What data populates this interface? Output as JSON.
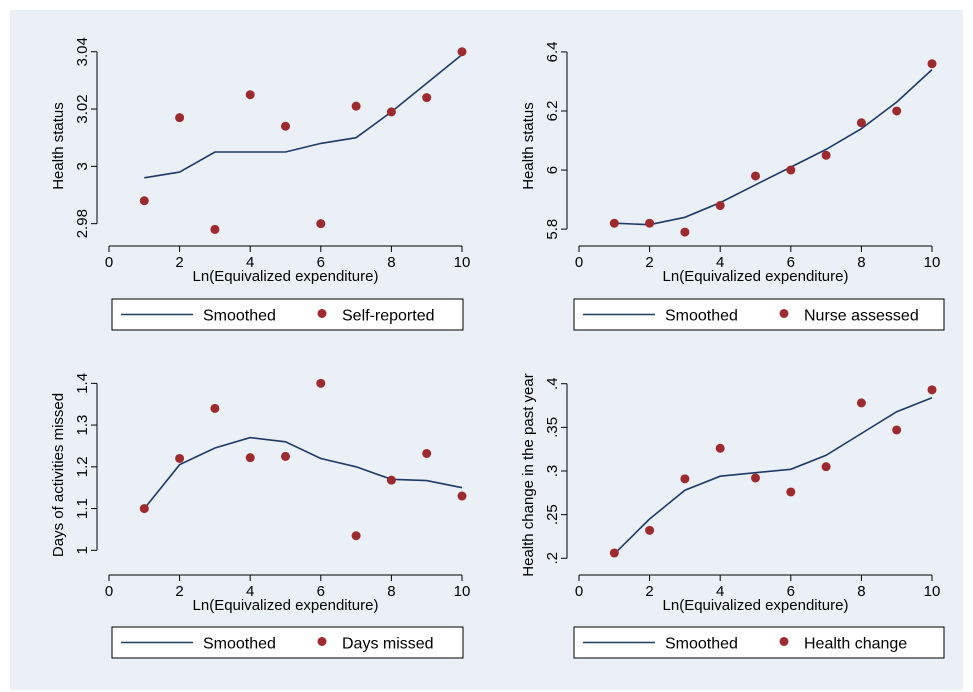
{
  "colors": {
    "background": "#eaf0f5",
    "line": "#1f3a66",
    "marker": "#9c2a2e",
    "frame": "#000000"
  },
  "chart_data": [
    {
      "type": "line+scatter",
      "xlabel": "Ln(Equivalized expenditure)",
      "ylabel": "Health status",
      "xlim": [
        0,
        10
      ],
      "ylim": [
        2.975,
        3.042
      ],
      "xticks": [
        0,
        2,
        4,
        6,
        8,
        10
      ],
      "yticks": [
        2.98,
        3,
        3.02,
        3.04
      ],
      "ytick_labels": [
        "2.98",
        "3",
        "3.02",
        "3.04"
      ],
      "x": [
        1,
        2,
        3,
        4,
        5,
        6,
        7,
        8,
        9,
        10
      ],
      "series": [
        {
          "name": "Smoothed",
          "kind": "line",
          "values": [
            2.996,
            2.998,
            3.005,
            3.005,
            3.005,
            3.008,
            3.01,
            3.019,
            3.029,
            3.039
          ]
        },
        {
          "name": "Self-reported",
          "kind": "scatter",
          "values": [
            2.988,
            3.017,
            2.978,
            3.025,
            3.014,
            2.98,
            3.021,
            3.019,
            3.024,
            3.04
          ]
        }
      ],
      "legend": [
        "Smoothed",
        "Self-reported"
      ],
      "legend_position": "bottom"
    },
    {
      "type": "line+scatter",
      "xlabel": "Ln(Equivalized expenditure)",
      "ylabel": "Health status",
      "xlim": [
        0,
        10
      ],
      "ylim": [
        5.77,
        6.42
      ],
      "xticks": [
        0,
        2,
        4,
        6,
        8,
        10
      ],
      "yticks": [
        5.8,
        6,
        6.2,
        6.4
      ],
      "ytick_labels": [
        "5.8",
        "6",
        "6.2",
        "6.4"
      ],
      "x": [
        1,
        2,
        3,
        4,
        5,
        6,
        7,
        8,
        9,
        10
      ],
      "series": [
        {
          "name": "Smoothed",
          "kind": "line",
          "values": [
            5.82,
            5.815,
            5.84,
            5.89,
            5.95,
            6.01,
            6.07,
            6.14,
            6.23,
            6.34
          ]
        },
        {
          "name": "Nurse assessed",
          "kind": "scatter",
          "values": [
            5.82,
            5.82,
            5.79,
            5.88,
            5.98,
            6.0,
            6.05,
            6.16,
            6.2,
            6.36
          ]
        }
      ],
      "legend": [
        "Smoothed",
        "Nurse assessed"
      ],
      "legend_position": "bottom"
    },
    {
      "type": "line+scatter",
      "xlabel": "Ln(Equivalized expenditure)",
      "ylabel": "Days of activities missed",
      "xlim": [
        0,
        10
      ],
      "ylim": [
        0.96,
        1.42
      ],
      "xticks": [
        0,
        2,
        4,
        6,
        8,
        10
      ],
      "yticks": [
        1,
        1.1,
        1.2,
        1.3,
        1.4
      ],
      "ytick_labels": [
        "1",
        "1.1",
        "1.2",
        "1.3",
        "1.4"
      ],
      "x": [
        1,
        2,
        3,
        4,
        5,
        6,
        7,
        8,
        9,
        10
      ],
      "series": [
        {
          "name": "Smoothed",
          "kind": "line",
          "values": [
            1.1,
            1.205,
            1.245,
            1.27,
            1.26,
            1.22,
            1.2,
            1.17,
            1.167,
            1.15
          ]
        },
        {
          "name": "Days missed",
          "kind": "scatter",
          "values": [
            1.1,
            1.22,
            1.34,
            1.222,
            1.225,
            1.4,
            1.035,
            1.168,
            1.232,
            1.13
          ]
        }
      ],
      "legend": [
        "Smoothed",
        "Days missed"
      ],
      "legend_position": "bottom"
    },
    {
      "type": "line+scatter",
      "xlabel": "Ln(Equivalized expenditure)",
      "ylabel": "Health change in the past year",
      "xlim": [
        0,
        10
      ],
      "ylim": [
        0.19,
        0.41
      ],
      "xticks": [
        0,
        2,
        4,
        6,
        8,
        10
      ],
      "yticks": [
        0.2,
        0.25,
        0.3,
        0.35,
        0.4
      ],
      "ytick_labels": [
        ".2",
        ".25",
        ".3",
        ".35",
        ".4"
      ],
      "x": [
        1,
        2,
        3,
        4,
        5,
        6,
        7,
        8,
        9,
        10
      ],
      "series": [
        {
          "name": "Smoothed",
          "kind": "line",
          "values": [
            0.205,
            0.245,
            0.278,
            0.294,
            0.298,
            0.302,
            0.318,
            0.343,
            0.368,
            0.384
          ]
        },
        {
          "name": "Health change",
          "kind": "scatter",
          "values": [
            0.206,
            0.232,
            0.291,
            0.326,
            0.292,
            0.276,
            0.305,
            0.378,
            0.347,
            0.393
          ]
        }
      ],
      "legend": [
        "Smoothed",
        "Health change"
      ],
      "legend_position": "bottom"
    }
  ]
}
